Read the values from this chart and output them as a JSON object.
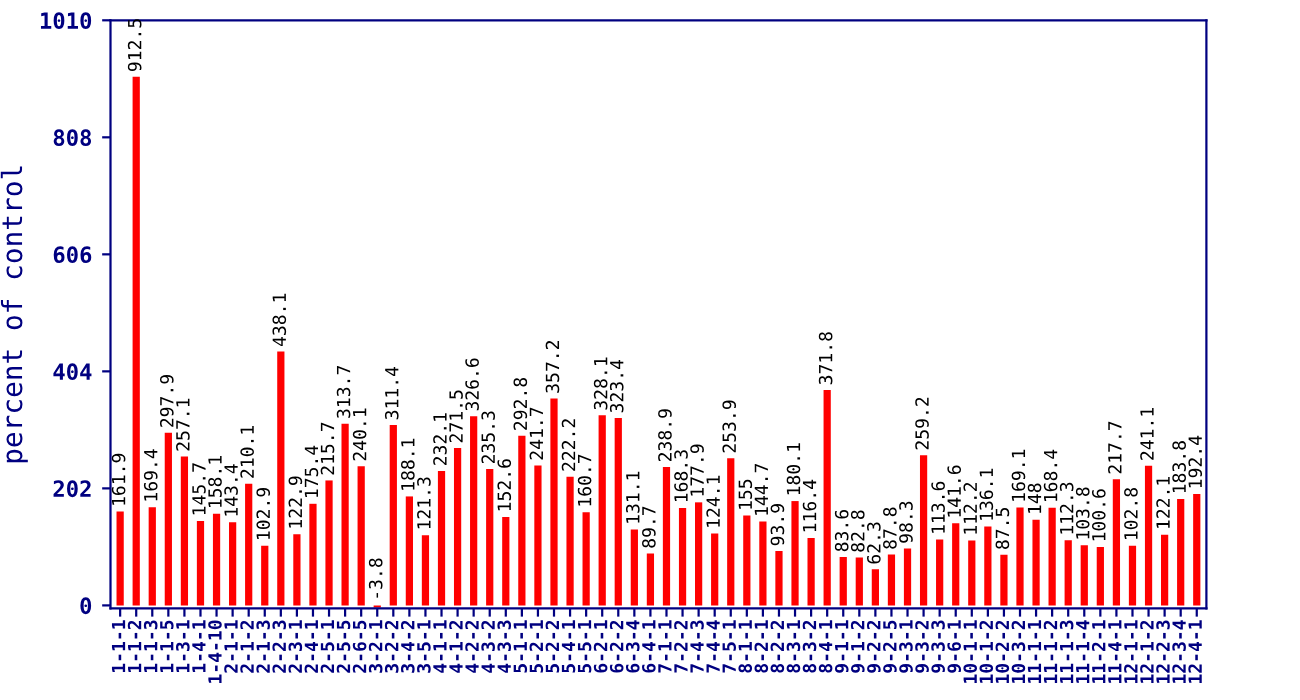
{
  "chart_data": {
    "type": "bar",
    "ylabel": "percent of control",
    "categories": [
      "1-1-1",
      "1-1-2",
      "1-1-3",
      "1-1-5",
      "1-3-1",
      "1-4-1",
      "1-4-10",
      "2-1-1",
      "2-1-2",
      "2-1-3",
      "2-2-3",
      "2-3-1",
      "2-4-1",
      "2-5-1",
      "2-5-5",
      "2-6-5",
      "3-2-1",
      "3-2-2",
      "3-4-2",
      "3-5-1",
      "4-1-1",
      "4-1-2",
      "4-2-2",
      "4-3-2",
      "4-3-3",
      "5-1-1",
      "5-2-1",
      "5-2-2",
      "5-4-1",
      "5-5-1",
      "6-2-1",
      "6-2-2",
      "6-3-4",
      "6-4-1",
      "7-1-1",
      "7-2-2",
      "7-4-3",
      "7-4-4",
      "7-5-1",
      "8-1-1",
      "8-2-1",
      "8-2-2",
      "8-3-1",
      "8-3-2",
      "8-4-1",
      "9-1-1",
      "9-1-2",
      "9-2-2",
      "9-2-5",
      "9-3-1",
      "9-3-2",
      "9-3-3",
      "9-6-1",
      "10-1-1",
      "10-1-2",
      "10-2-2",
      "10-3-2",
      "11-1-1",
      "11-1-2",
      "11-1-3",
      "11-1-4",
      "11-2-1",
      "11-4-1",
      "12-1-1",
      "12-1-2",
      "12-2-3",
      "12-3-4",
      "12-4-1"
    ],
    "values": [
      161.9,
      912.5,
      169.4,
      297.9,
      257.1,
      145.7,
      158.1,
      143.4,
      210.1,
      102.9,
      438.1,
      122.9,
      175.4,
      215.7,
      313.7,
      240.1,
      -3.8,
      311.4,
      188.1,
      121.3,
      232.1,
      271.5,
      326.6,
      235.3,
      152.6,
      292.8,
      241.7,
      357.2,
      222.2,
      160.7,
      328.1,
      323.4,
      131.1,
      89.7,
      238.9,
      168.3,
      177.9,
      124.1,
      253.9,
      155,
      144.7,
      93.9,
      180.1,
      116.4,
      371.8,
      83.6,
      82.8,
      62.3,
      87.8,
      98.3,
      259.2,
      113.6,
      141.6,
      112.2,
      136.1,
      87.5,
      169.1,
      148,
      168.4,
      112.3,
      103.8,
      100.6,
      217.7,
      102.8,
      241.1,
      122.1,
      183.8,
      192.4
    ],
    "color": "#ff0000",
    "ylim": [
      -5,
      1010
    ],
    "yticks": [
      0,
      202,
      404,
      606,
      808,
      1010
    ],
    "data_labels": true,
    "grid": false,
    "legend": false
  }
}
